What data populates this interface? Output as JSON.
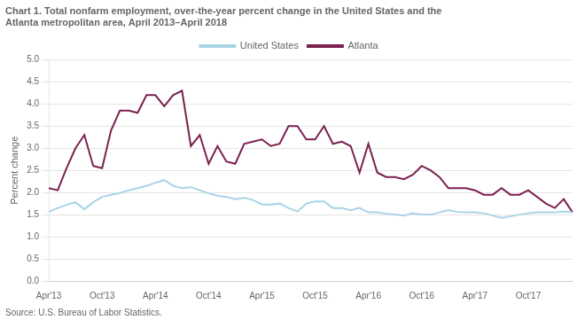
{
  "chart_data": {
    "type": "line",
    "title": [
      "Chart 1. Total nonfarm employment, over-the-year percent change in the United States and the",
      "Atlanta metropolitan area, April 2013–April 2018"
    ],
    "ylabel": "Percent change",
    "annotations": [
      "Source: U.S. Bureau of Labor Statistics."
    ],
    "categories": [
      "Apr'13",
      null,
      null,
      null,
      null,
      null,
      "Oct'13",
      null,
      null,
      null,
      null,
      null,
      "Apr'14",
      null,
      null,
      null,
      null,
      null,
      "Oct'14",
      null,
      null,
      null,
      null,
      null,
      "Apr'15",
      null,
      null,
      null,
      null,
      null,
      "Oct'15",
      null,
      null,
      null,
      null,
      null,
      "Apr'16",
      null,
      null,
      null,
      null,
      null,
      "Oct'16",
      null,
      null,
      null,
      null,
      null,
      "Apr'17",
      null,
      null,
      null,
      null,
      null,
      "Oct'17",
      null,
      null,
      null,
      null,
      null
    ],
    "series": [
      {
        "name": "United States",
        "color": "#a8d4e6",
        "values": [
          1.56,
          1.65,
          1.72,
          1.78,
          1.62,
          1.78,
          1.9,
          1.95,
          1.99,
          2.05,
          2.1,
          2.15,
          2.22,
          2.28,
          2.15,
          2.1,
          2.12,
          2.05,
          1.98,
          1.93,
          1.9,
          1.85,
          1.88,
          1.83,
          1.73,
          1.73,
          1.75,
          1.65,
          1.57,
          1.75,
          1.8,
          1.8,
          1.65,
          1.65,
          1.6,
          1.65,
          1.55,
          1.55,
          1.52,
          1.5,
          1.48,
          1.53,
          1.5,
          1.5,
          1.55,
          1.6,
          1.56,
          1.55,
          1.55,
          1.53,
          1.48,
          1.43,
          1.46,
          1.5,
          1.53,
          1.55,
          1.55,
          1.55,
          1.57,
          1.55
        ]
      },
      {
        "name": "Atlanta",
        "color": "#7b2150",
        "values": [
          2.1,
          2.05,
          2.55,
          3.0,
          3.3,
          2.6,
          2.55,
          3.4,
          3.85,
          3.85,
          3.8,
          4.2,
          4.2,
          3.95,
          4.2,
          4.3,
          3.05,
          3.3,
          2.65,
          3.05,
          2.7,
          2.65,
          3.1,
          3.15,
          3.2,
          3.05,
          3.1,
          3.5,
          3.5,
          3.2,
          3.2,
          3.5,
          3.1,
          3.15,
          3.05,
          2.45,
          3.1,
          2.45,
          2.35,
          2.35,
          2.3,
          2.4,
          2.6,
          2.5,
          2.35,
          2.1,
          2.1,
          2.1,
          2.05,
          1.95,
          1.95,
          2.1,
          1.95,
          1.95,
          2.05,
          1.9,
          1.75,
          1.65,
          1.85,
          1.55
        ]
      }
    ],
    "ylim": [
      0.0,
      5.0
    ],
    "yticks": [
      {
        "value": 0,
        "label": "0.0"
      },
      0.5,
      {
        "value": 1,
        "label": "1.0"
      },
      1.5,
      {
        "value": 2,
        "label": "2.0"
      },
      2.5,
      {
        "value": 3,
        "label": "3.0"
      },
      3.5,
      {
        "value": 4,
        "label": "4.0"
      },
      4.5,
      {
        "value": 5,
        "label": "5.0"
      }
    ],
    "grid": true,
    "legend": "top"
  }
}
